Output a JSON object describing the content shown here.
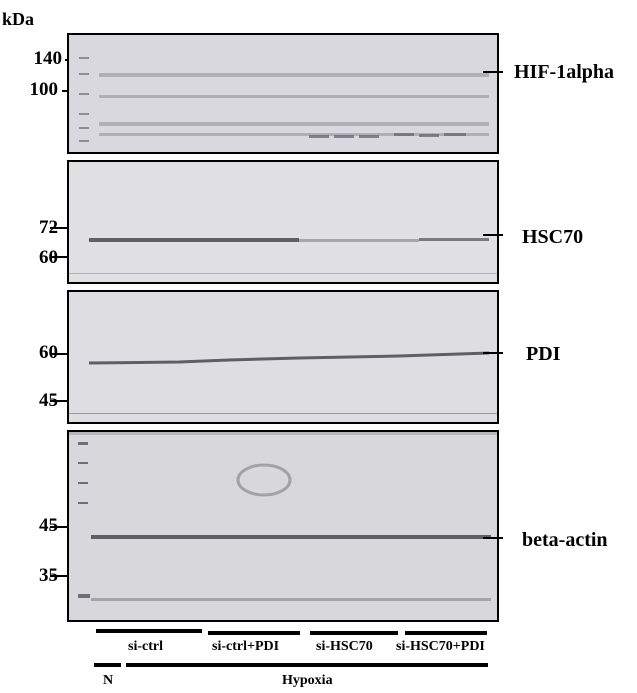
{
  "unit": "kDa",
  "panels": [
    {
      "protein": "HIF-1alpha",
      "markers": [
        "140",
        "100"
      ]
    },
    {
      "protein": "HSC70",
      "markers": [
        "72",
        "60"
      ]
    },
    {
      "protein": "PDI",
      "markers": [
        "60",
        "45"
      ]
    },
    {
      "protein": "beta-actin",
      "markers": [
        "45",
        "35"
      ]
    }
  ],
  "groups": [
    "si-ctrl",
    "si-ctrl+PDI",
    "si-HSC70",
    "si-HSC70+PDI"
  ],
  "conditions": [
    "N",
    "Hypoxia"
  ],
  "colors": {
    "panel_bg": "#d9d9db",
    "band": "#5a5a5e",
    "ladder": "#707076"
  }
}
